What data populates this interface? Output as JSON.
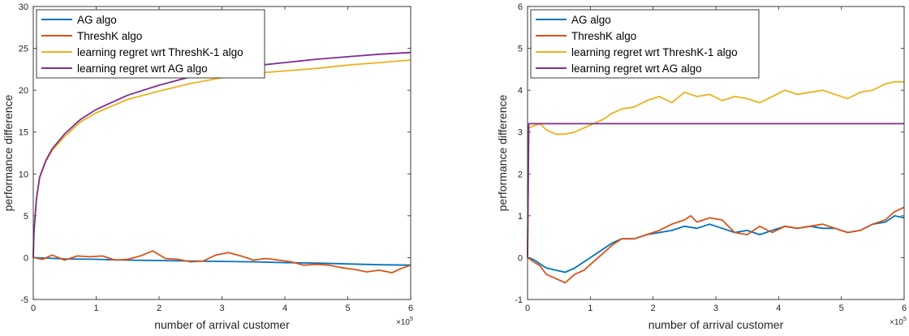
{
  "chart_data": [
    {
      "type": "line",
      "title": "",
      "xlabel": "number of arrival customer",
      "ylabel": "performance difference",
      "x_exponent_label": "×10",
      "x_exponent": "5",
      "xlim": [
        0,
        6
      ],
      "ylim": [
        -5,
        30
      ],
      "xticks": [
        "0",
        "1",
        "2",
        "3",
        "4",
        "5",
        "6"
      ],
      "yticks": [
        "-5",
        "0",
        "5",
        "10",
        "15",
        "20",
        "25",
        "30"
      ],
      "grid": false,
      "legend_position": "top-left",
      "series": [
        {
          "name": "AG algo",
          "color": "#0072BD",
          "x": [
            0,
            0.5,
            1,
            1.5,
            2,
            2.5,
            3,
            3.5,
            4,
            4.5,
            5,
            5.5,
            6
          ],
          "y": [
            0,
            -0.15,
            -0.2,
            -0.3,
            -0.35,
            -0.4,
            -0.45,
            -0.5,
            -0.6,
            -0.65,
            -0.75,
            -0.85,
            -0.9
          ]
        },
        {
          "name": "ThreshK algo",
          "color": "#D95319",
          "x": [
            0,
            0.15,
            0.3,
            0.5,
            0.7,
            0.9,
            1.1,
            1.3,
            1.5,
            1.7,
            1.9,
            2.1,
            2.3,
            2.5,
            2.7,
            2.9,
            3.1,
            3.3,
            3.5,
            3.7,
            3.9,
            4.1,
            4.3,
            4.5,
            4.7,
            4.9,
            5.1,
            5.3,
            5.5,
            5.7,
            5.85,
            6
          ],
          "y": [
            0,
            -0.2,
            0.3,
            -0.3,
            0.2,
            0.1,
            0.2,
            -0.3,
            -0.2,
            0.2,
            0.8,
            -0.1,
            -0.2,
            -0.5,
            -0.4,
            0.3,
            0.6,
            0.2,
            -0.3,
            -0.1,
            -0.3,
            -0.5,
            -0.9,
            -0.8,
            -0.9,
            -1.2,
            -1.4,
            -1.7,
            -1.5,
            -1.8,
            -1.3,
            -0.9
          ]
        },
        {
          "name": "learning regret wrt ThreshK-1 algo",
          "color": "#EDB120",
          "x": [
            0,
            0.01,
            0.05,
            0.1,
            0.2,
            0.3,
            0.5,
            0.75,
            1,
            1.5,
            2,
            2.5,
            3,
            3.5,
            4,
            4.5,
            5,
            5.5,
            6
          ],
          "y": [
            0,
            3,
            7,
            9.5,
            11.5,
            12.8,
            14.5,
            16.2,
            17.3,
            18.9,
            19.9,
            20.8,
            21.5,
            22,
            22.3,
            22.6,
            23,
            23.3,
            23.6
          ]
        },
        {
          "name": "learning regret wrt AG algo",
          "color": "#7E2F8E",
          "x": [
            0,
            0.01,
            0.05,
            0.1,
            0.2,
            0.3,
            0.5,
            0.75,
            1,
            1.5,
            2,
            2.5,
            3,
            3.5,
            4,
            4.5,
            5,
            5.5,
            6
          ],
          "y": [
            0,
            3,
            7,
            9.6,
            11.6,
            13,
            14.8,
            16.5,
            17.7,
            19.4,
            20.6,
            21.6,
            22.3,
            22.9,
            23.3,
            23.7,
            24,
            24.3,
            24.5
          ]
        }
      ]
    },
    {
      "type": "line",
      "title": "",
      "xlabel": "number of arrival customer",
      "ylabel": "performance difference",
      "x_exponent_label": "×10",
      "x_exponent": "5",
      "xlim": [
        0,
        6
      ],
      "ylim": [
        -1,
        6
      ],
      "xticks": [
        "0",
        "1",
        "2",
        "3",
        "4",
        "5",
        "6"
      ],
      "yticks": [
        "-1",
        "0",
        "1",
        "2",
        "3",
        "4",
        "5",
        "6"
      ],
      "grid": false,
      "legend_position": "top-left",
      "series": [
        {
          "name": "AG algo",
          "color": "#0072BD",
          "x": [
            0,
            0.1,
            0.2,
            0.3,
            0.45,
            0.6,
            0.75,
            0.9,
            1.05,
            1.2,
            1.35,
            1.5,
            1.7,
            1.9,
            2.1,
            2.3,
            2.5,
            2.7,
            2.9,
            3.1,
            3.3,
            3.5,
            3.7,
            3.9,
            4.1,
            4.3,
            4.5,
            4.7,
            4.9,
            5.1,
            5.3,
            5.5,
            5.7,
            5.85,
            6
          ],
          "y": [
            0,
            -0.05,
            -0.15,
            -0.25,
            -0.3,
            -0.35,
            -0.25,
            -0.1,
            0.05,
            0.2,
            0.35,
            0.45,
            0.45,
            0.55,
            0.6,
            0.65,
            0.75,
            0.7,
            0.8,
            0.7,
            0.6,
            0.65,
            0.55,
            0.65,
            0.75,
            0.7,
            0.75,
            0.7,
            0.7,
            0.6,
            0.65,
            0.8,
            0.85,
            1.0,
            0.95
          ]
        },
        {
          "name": "ThreshK algo",
          "color": "#D95319",
          "x": [
            0,
            0.1,
            0.2,
            0.3,
            0.45,
            0.6,
            0.75,
            0.9,
            1.05,
            1.2,
            1.35,
            1.5,
            1.7,
            1.9,
            2.1,
            2.3,
            2.5,
            2.6,
            2.7,
            2.9,
            3.1,
            3.3,
            3.5,
            3.7,
            3.9,
            4.1,
            4.3,
            4.5,
            4.7,
            4.9,
            5.1,
            5.3,
            5.5,
            5.7,
            5.85,
            6
          ],
          "y": [
            0,
            -0.1,
            -0.2,
            -0.4,
            -0.5,
            -0.6,
            -0.4,
            -0.3,
            -0.1,
            0.1,
            0.3,
            0.45,
            0.45,
            0.55,
            0.65,
            0.8,
            0.9,
            1.0,
            0.85,
            0.95,
            0.9,
            0.6,
            0.55,
            0.75,
            0.6,
            0.75,
            0.7,
            0.75,
            0.8,
            0.7,
            0.6,
            0.65,
            0.8,
            0.9,
            1.1,
            1.2
          ]
        },
        {
          "name": "learning regret wrt ThreshK-1 algo",
          "color": "#EDB120",
          "x": [
            0,
            0.02,
            0.1,
            0.2,
            0.3,
            0.45,
            0.6,
            0.75,
            0.9,
            1.05,
            1.2,
            1.35,
            1.5,
            1.7,
            1.9,
            2.1,
            2.3,
            2.5,
            2.7,
            2.9,
            3.1,
            3.3,
            3.5,
            3.7,
            3.9,
            4.1,
            4.3,
            4.5,
            4.7,
            4.9,
            5.1,
            5.3,
            5.5,
            5.7,
            5.85,
            6
          ],
          "y": [
            0,
            3.1,
            3.15,
            3.2,
            3.05,
            2.95,
            2.95,
            3.0,
            3.1,
            3.2,
            3.3,
            3.45,
            3.55,
            3.6,
            3.75,
            3.85,
            3.7,
            3.95,
            3.85,
            3.9,
            3.75,
            3.85,
            3.8,
            3.7,
            3.85,
            4.0,
            3.9,
            3.95,
            4.0,
            3.9,
            3.8,
            3.95,
            4.0,
            4.15,
            4.2,
            4.2
          ]
        },
        {
          "name": "learning regret wrt AG algo",
          "color": "#7E2F8E",
          "x": [
            0,
            0.02,
            0.05,
            6
          ],
          "y": [
            0,
            3.2,
            3.2,
            3.2
          ]
        }
      ]
    }
  ]
}
